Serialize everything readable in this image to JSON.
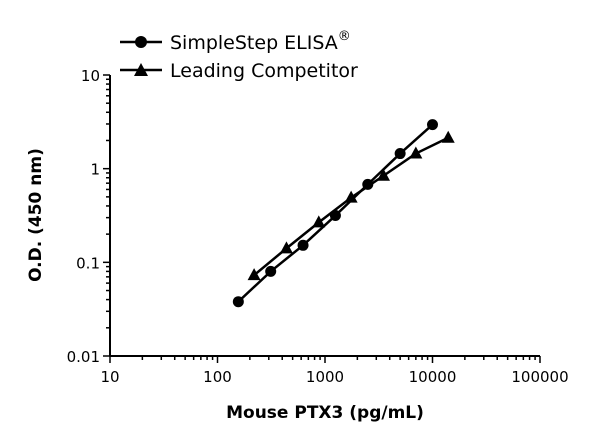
{
  "chart_data": {
    "type": "line",
    "xlabel": "Mouse PTX3 (pg/mL)",
    "ylabel": "O.D. (450 nm)",
    "xscale": "log",
    "yscale": "log",
    "xlim": [
      10,
      100000
    ],
    "ylim": [
      0.01,
      10
    ],
    "xticks": [
      "10",
      "100",
      "1000",
      "10000",
      "100000"
    ],
    "yticks": [
      "0.01",
      "0.1",
      "1",
      "10"
    ],
    "grid": false,
    "legend_position": "top-left",
    "series": [
      {
        "name": "SimpleStep ELISA",
        "name_suffix": "®",
        "marker": "circle",
        "color": "#000000",
        "x": [
          156.25,
          312.5,
          625,
          1250,
          2500,
          5000,
          10000
        ],
        "y": [
          0.038,
          0.08,
          0.152,
          0.316,
          0.68,
          1.45,
          2.95
        ]
      },
      {
        "name": "Leading Competitor",
        "marker": "triangle",
        "color": "#000000",
        "x": [
          219,
          438,
          875,
          1750,
          3500,
          7000,
          14000
        ],
        "y": [
          0.073,
          0.141,
          0.267,
          0.49,
          0.84,
          1.45,
          2.14
        ]
      }
    ]
  }
}
